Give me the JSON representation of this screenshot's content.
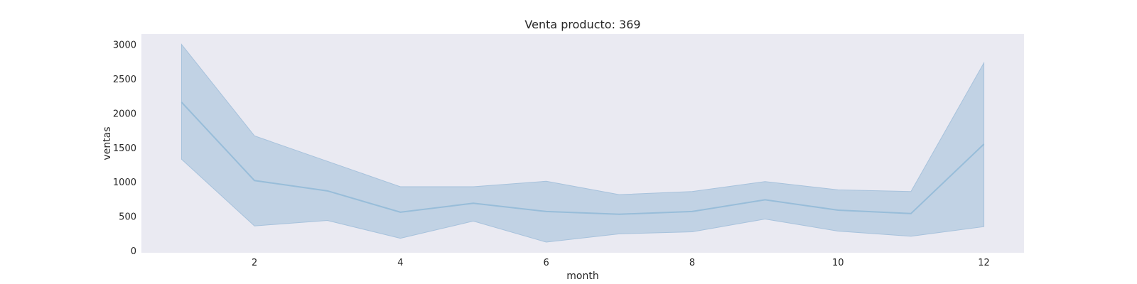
{
  "chart_data": {
    "type": "line",
    "title": "Venta producto: 369",
    "xlabel": "month",
    "ylabel": "ventas",
    "x": [
      1,
      2,
      3,
      4,
      5,
      6,
      7,
      8,
      9,
      10,
      11,
      12
    ],
    "series": [
      {
        "values": [
          2160,
          1020,
          870,
          560,
          690,
          570,
          530,
          570,
          740,
          590,
          540,
          1550
        ],
        "lower": [
          1330,
          360,
          440,
          180,
          430,
          125,
          245,
          275,
          460,
          285,
          210,
          350
        ],
        "upper": [
          3000,
          1670,
          1300,
          930,
          930,
          1010,
          815,
          860,
          1005,
          885,
          860,
          2730
        ]
      }
    ],
    "x_ticks": [
      2,
      4,
      6,
      8,
      10,
      12
    ],
    "y_ticks": [
      0,
      500,
      1000,
      1500,
      2000,
      2500,
      3000
    ],
    "xlim": [
      0.45,
      12.55
    ],
    "ylim": [
      -30,
      3150
    ],
    "grid": false,
    "colors": {
      "line": "#98bdd9",
      "band": "#c1d2e4",
      "band_edge": "#a7c2dc",
      "plot_bg": "#eaeaf2"
    }
  }
}
